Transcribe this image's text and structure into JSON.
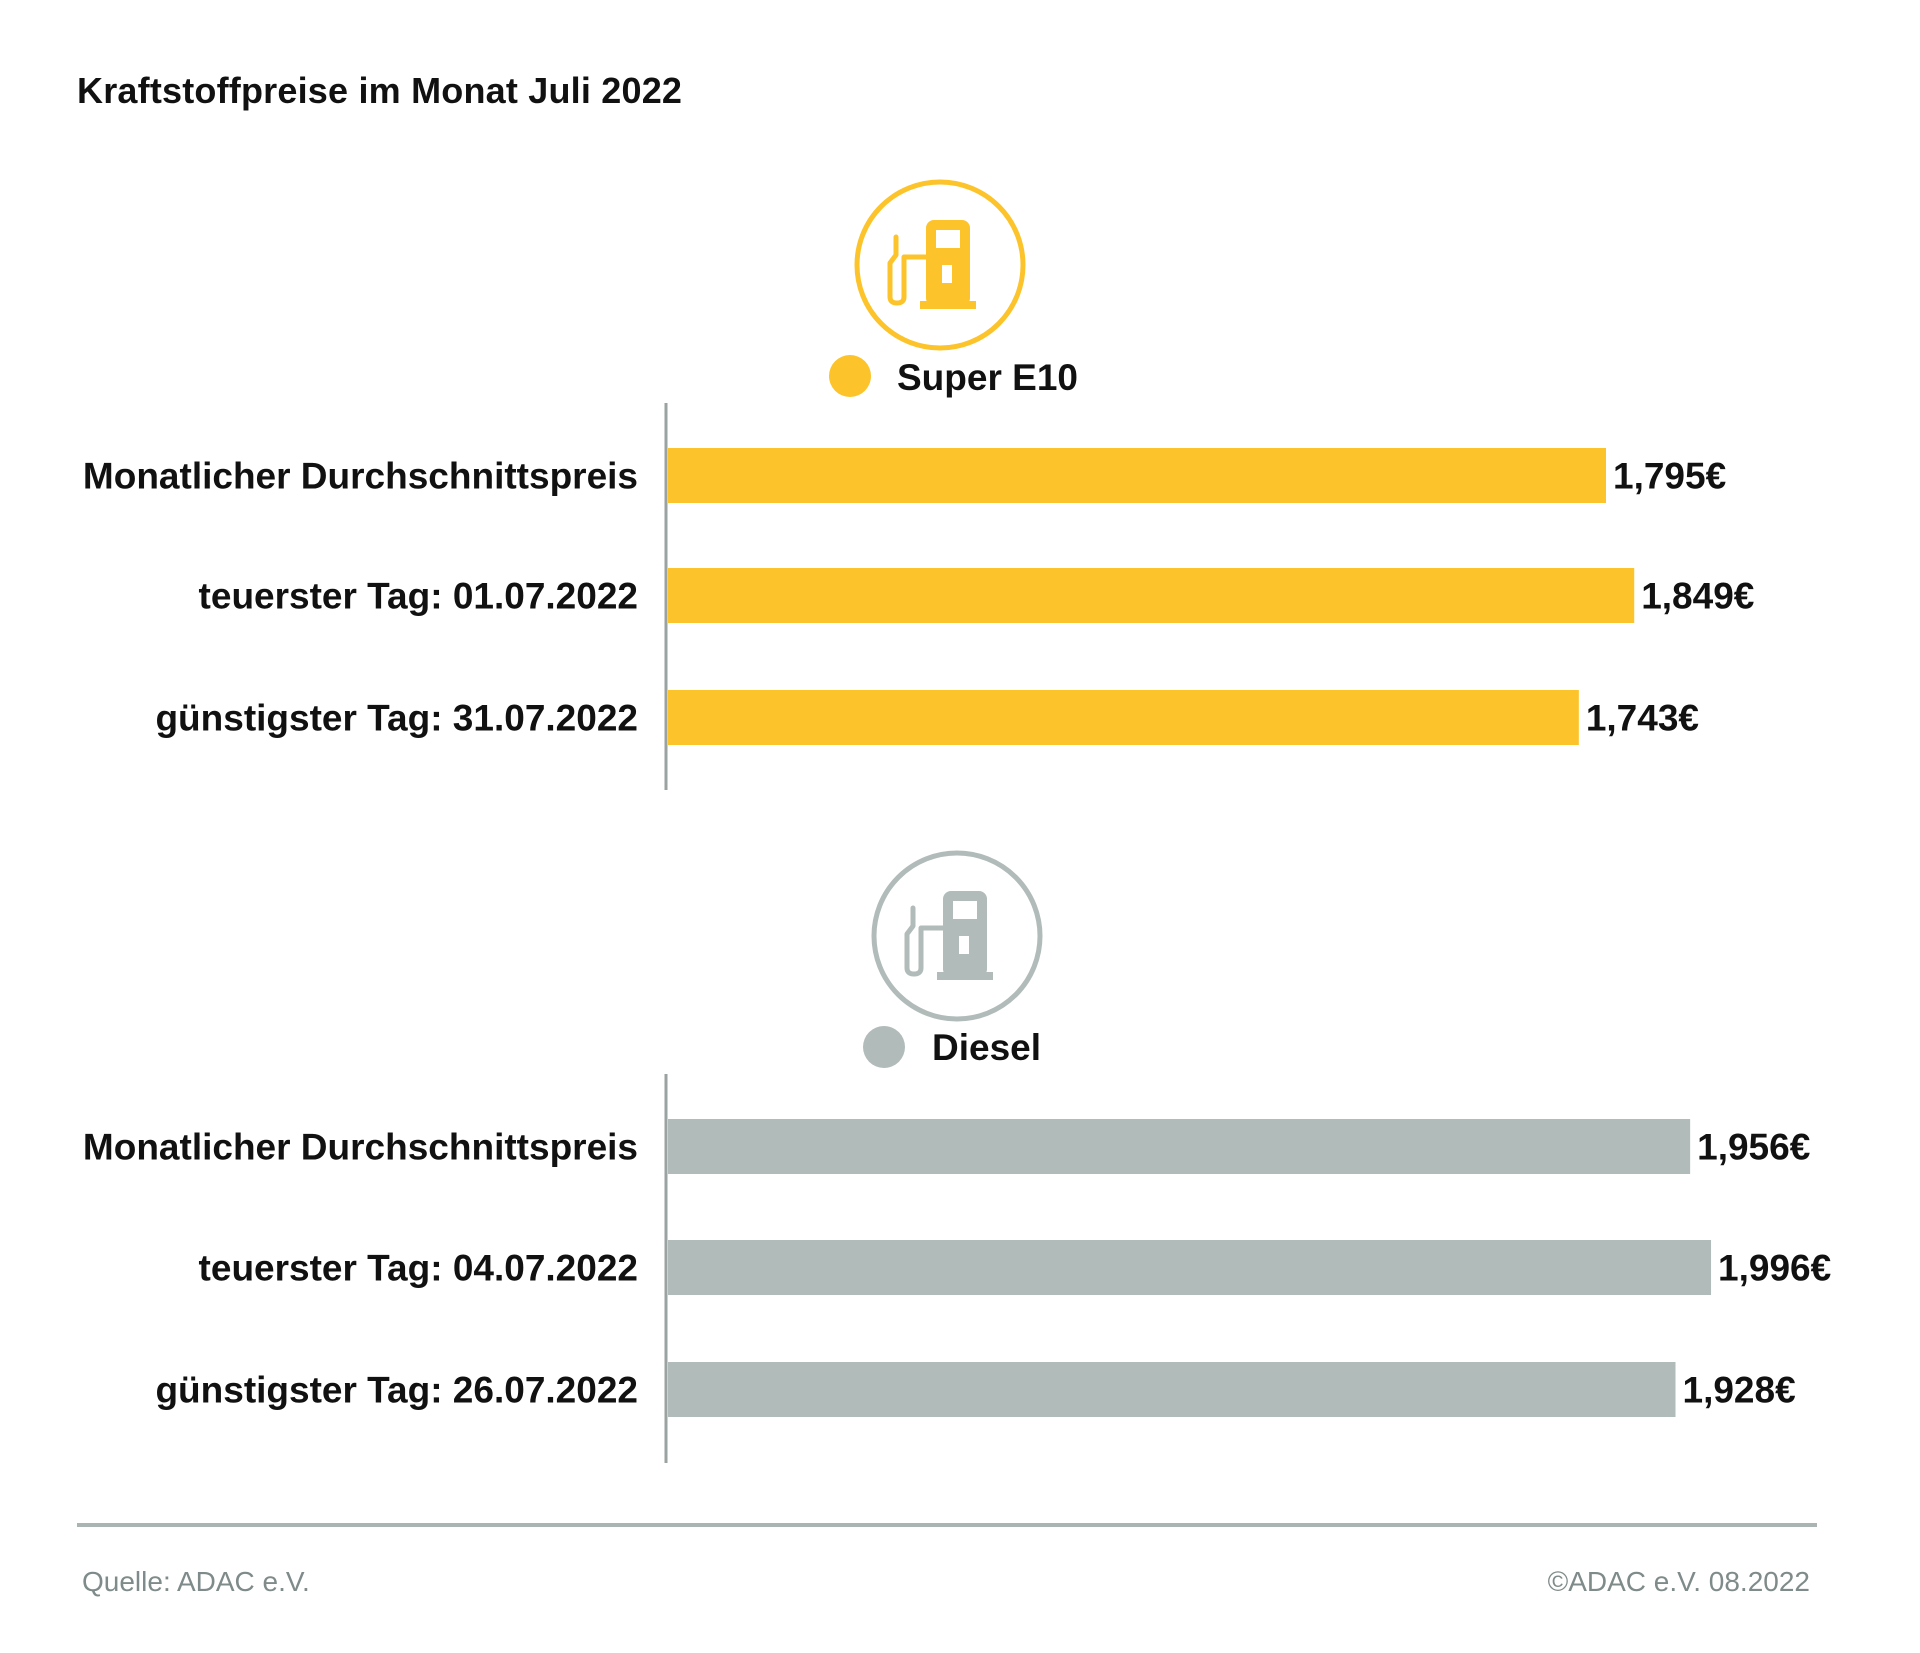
{
  "title": "Kraftstoffpreise im Monat Juli 2022",
  "colors": {
    "super": "#fcc42a",
    "diesel": "#b1bbb9",
    "axis": "#9aa3a2",
    "text": "#111111",
    "footer": "#7f8b8a"
  },
  "chart_data": [
    {
      "type": "bar",
      "orientation": "horizontal",
      "series": [
        {
          "name": "Super E10",
          "values": [
            1.795,
            1.849,
            1.743
          ]
        }
      ],
      "categories": [
        "Monatlicher Durchschnittspreis",
        "teuerster Tag: 01.07.2022",
        "günstigster Tag: 31.07.2022"
      ],
      "value_labels": [
        "1,795€",
        "1,849€",
        "1,743€"
      ],
      "icon": "fuel-pump-icon"
    },
    {
      "type": "bar",
      "orientation": "horizontal",
      "series": [
        {
          "name": "Diesel",
          "values": [
            1.956,
            1.996,
            1.928
          ]
        }
      ],
      "categories": [
        "Monatlicher Durchschnittspreis",
        "teuerster Tag: 04.07.2022",
        "günstigster Tag: 26.07.2022"
      ],
      "value_labels": [
        "1,956€",
        "1,996€",
        "1,928€"
      ],
      "icon": "fuel-pump-icon"
    }
  ],
  "footer": {
    "source": "Quelle: ADAC e.V.",
    "copyright": "©ADAC e.V. 08.2022"
  }
}
